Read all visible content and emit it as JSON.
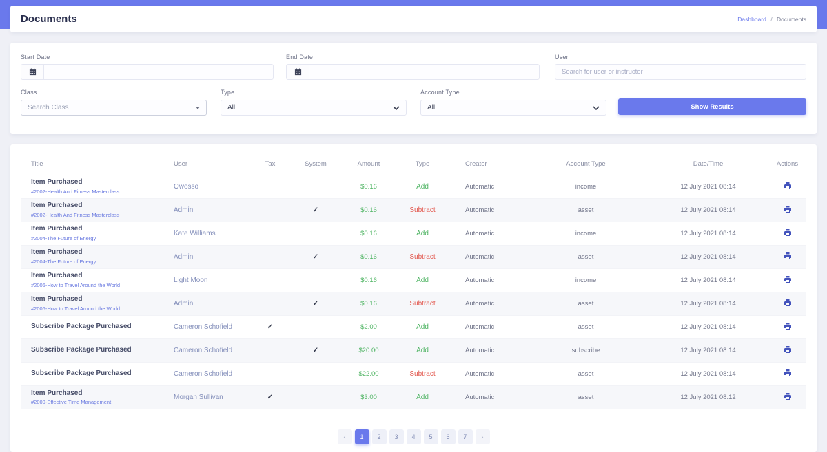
{
  "page": {
    "title": "Documents",
    "breadcrumb": {
      "home": "Dashboard",
      "separator": "/",
      "current": "Documents"
    }
  },
  "filters": {
    "start_date": {
      "label": "Start Date",
      "value": ""
    },
    "end_date": {
      "label": "End Date",
      "value": ""
    },
    "user": {
      "label": "User",
      "placeholder": "Search for user or instructor",
      "value": ""
    },
    "class": {
      "label": "Class",
      "placeholder": "Search Class"
    },
    "type": {
      "label": "Type",
      "value": "All"
    },
    "account_type": {
      "label": "Account Type",
      "value": "All"
    },
    "submit_label": "Show Results"
  },
  "table": {
    "columns": [
      "Title",
      "User",
      "Tax",
      "System",
      "Amount",
      "Type",
      "Creator",
      "Account Type",
      "Date/Time",
      "Actions"
    ],
    "check_glyph": "✓",
    "rows": [
      {
        "title": "Item Purchased",
        "subtitle": "#2002-Health And Fitness Masterclass",
        "user": "Owosso",
        "tax": false,
        "system": false,
        "amount": "$0.16",
        "type": "Add",
        "creator": "Automatic",
        "account_type": "income",
        "datetime": "12 July 2021 08:14"
      },
      {
        "title": "Item Purchased",
        "subtitle": "#2002-Health And Fitness Masterclass",
        "user": "Admin",
        "tax": false,
        "system": true,
        "amount": "$0.16",
        "type": "Subtract",
        "creator": "Automatic",
        "account_type": "asset",
        "datetime": "12 July 2021 08:14"
      },
      {
        "title": "Item Purchased",
        "subtitle": "#2004-The Future of Energy",
        "user": "Kate Williams",
        "tax": false,
        "system": false,
        "amount": "$0.16",
        "type": "Add",
        "creator": "Automatic",
        "account_type": "income",
        "datetime": "12 July 2021 08:14"
      },
      {
        "title": "Item Purchased",
        "subtitle": "#2004-The Future of Energy",
        "user": "Admin",
        "tax": false,
        "system": true,
        "amount": "$0.16",
        "type": "Subtract",
        "creator": "Automatic",
        "account_type": "asset",
        "datetime": "12 July 2021 08:14"
      },
      {
        "title": "Item Purchased",
        "subtitle": "#2006-How to Travel Around the World",
        "user": "Light Moon",
        "tax": false,
        "system": false,
        "amount": "$0.16",
        "type": "Add",
        "creator": "Automatic",
        "account_type": "income",
        "datetime": "12 July 2021 08:14"
      },
      {
        "title": "Item Purchased",
        "subtitle": "#2006-How to Travel Around the World",
        "user": "Admin",
        "tax": false,
        "system": true,
        "amount": "$0.16",
        "type": "Subtract",
        "creator": "Automatic",
        "account_type": "asset",
        "datetime": "12 July 2021 08:14"
      },
      {
        "title": "Subscribe Package Purchased",
        "subtitle": "",
        "user": "Cameron Schofield",
        "tax": true,
        "system": false,
        "amount": "$2.00",
        "type": "Add",
        "creator": "Automatic",
        "account_type": "asset",
        "datetime": "12 July 2021 08:14"
      },
      {
        "title": "Subscribe Package Purchased",
        "subtitle": "",
        "user": "Cameron Schofield",
        "tax": false,
        "system": true,
        "amount": "$20.00",
        "type": "Add",
        "creator": "Automatic",
        "account_type": "subscribe",
        "datetime": "12 July 2021 08:14"
      },
      {
        "title": "Subscribe Package Purchased",
        "subtitle": "",
        "user": "Cameron Schofield",
        "tax": false,
        "system": false,
        "amount": "$22.00",
        "type": "Subtract",
        "creator": "Automatic",
        "account_type": "asset",
        "datetime": "12 July 2021 08:14"
      },
      {
        "title": "Item Purchased",
        "subtitle": "#2000-Effective Time Management",
        "user": "Morgan Sullivan",
        "tax": true,
        "system": false,
        "amount": "$3.00",
        "type": "Add",
        "creator": "Automatic",
        "account_type": "asset",
        "datetime": "12 July 2021 08:12"
      }
    ]
  },
  "pagination": {
    "prev_label": "‹",
    "next_label": "›",
    "pages": [
      "1",
      "2",
      "3",
      "4",
      "5",
      "6",
      "7"
    ],
    "active_page": "1"
  },
  "colors": {
    "primary": "#6a79ec",
    "success": "#4fb463",
    "danger": "#e2574d",
    "link": "#6a7ae0",
    "page_background": "#eff0f6"
  }
}
